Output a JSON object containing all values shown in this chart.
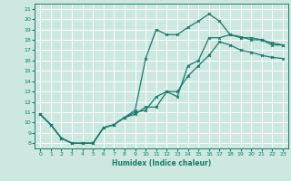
{
  "xlabel": "Humidex (Indice chaleur)",
  "bg_color": "#cce8e0",
  "grid_color": "#ffffff",
  "line_color": "#1a7a6a",
  "xlim": [
    -0.5,
    23.5
  ],
  "ylim": [
    7.5,
    21.5
  ],
  "xticks": [
    0,
    1,
    2,
    3,
    4,
    5,
    6,
    7,
    8,
    9,
    10,
    11,
    12,
    13,
    14,
    15,
    16,
    17,
    18,
    19,
    20,
    21,
    22,
    23
  ],
  "yticks": [
    8,
    9,
    10,
    11,
    12,
    13,
    14,
    15,
    16,
    17,
    18,
    19,
    20,
    21
  ],
  "line1_x": [
    0,
    1,
    2,
    3,
    4,
    5,
    6,
    7,
    8,
    9,
    10,
    11,
    12,
    13,
    14,
    15,
    16,
    17,
    18,
    19,
    20,
    21,
    22,
    23
  ],
  "line1_y": [
    10.8,
    9.8,
    8.5,
    8.0,
    8.0,
    8.0,
    9.5,
    9.8,
    10.5,
    11.0,
    11.2,
    12.5,
    13.0,
    12.5,
    15.5,
    16.0,
    18.2,
    18.2,
    18.5,
    18.2,
    18.2,
    18.0,
    17.5,
    17.5
  ],
  "line2_x": [
    0,
    1,
    2,
    3,
    4,
    5,
    6,
    7,
    8,
    9,
    10,
    11,
    12,
    13,
    14,
    15,
    16,
    17,
    18,
    19,
    20,
    21,
    22,
    23
  ],
  "line2_y": [
    10.8,
    9.8,
    8.5,
    8.0,
    8.0,
    8.0,
    9.5,
    9.8,
    10.5,
    11.2,
    16.2,
    19.0,
    18.5,
    18.5,
    19.2,
    19.8,
    20.5,
    19.8,
    18.5,
    18.3,
    18.0,
    18.0,
    17.7,
    17.5
  ],
  "line3_x": [
    0,
    1,
    2,
    3,
    4,
    5,
    6,
    7,
    8,
    9,
    10,
    11,
    12,
    13,
    14,
    15,
    16,
    17,
    18,
    19,
    20,
    21,
    22,
    23
  ],
  "line3_y": [
    10.8,
    9.8,
    8.5,
    8.0,
    8.0,
    8.0,
    9.5,
    9.8,
    10.5,
    10.8,
    11.5,
    11.5,
    13.0,
    13.0,
    14.5,
    15.5,
    16.5,
    17.8,
    17.5,
    17.0,
    16.8,
    16.5,
    16.3,
    16.2
  ]
}
